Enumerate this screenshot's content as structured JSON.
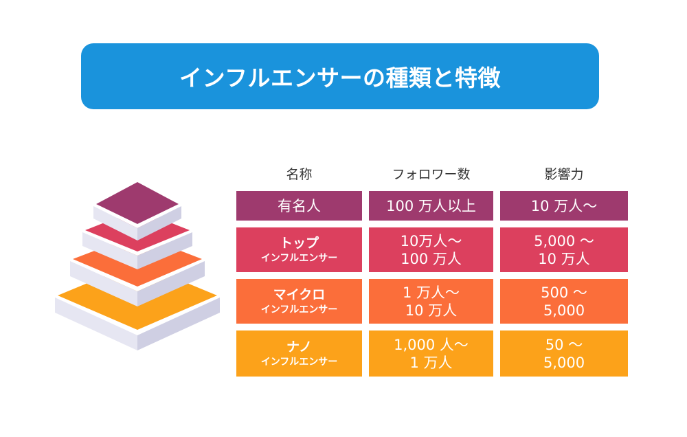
{
  "title": "インフルエンサーの種類と特徴",
  "columns": [
    "名称",
    "フォロワー数",
    "影響力"
  ],
  "rows": [
    {
      "name": "有名人",
      "sub": "",
      "followers": [
        "100 万人以上"
      ],
      "influence": [
        "10 万人〜"
      ],
      "color": "#9e3a6e"
    },
    {
      "name": "トップ",
      "sub": "インフルエンサー",
      "followers": [
        "10万人〜",
        "100 万人"
      ],
      "influence": [
        "5,000 〜",
        "10 万人"
      ],
      "color": "#dc405e"
    },
    {
      "name": "マイクロ",
      "sub": "インフルエンサー",
      "followers": [
        "1 万人〜",
        "10 万人"
      ],
      "influence": [
        "500 〜",
        "5,000"
      ],
      "color": "#fb6e3a"
    },
    {
      "name": "ナノ",
      "sub": "インフルエンサー",
      "followers": [
        "1,000 人〜",
        "1 万人"
      ],
      "influence": [
        "50 〜",
        "5,000"
      ],
      "color": "#fca21a"
    }
  ],
  "pyramid_colors": [
    "#9e3a6e",
    "#dc405e",
    "#fb6e3a",
    "#fca21a"
  ]
}
